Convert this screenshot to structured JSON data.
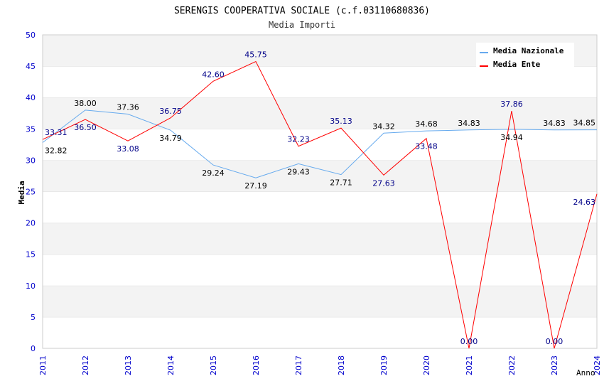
{
  "chart_data": {
    "type": "line",
    "title": "SERENGIS COOPERATIVA SOCIALE (c.f.03110680836)",
    "subtitle": "Media Importi",
    "xlabel": "Anno",
    "ylabel": "Media",
    "ylim": [
      0,
      50
    ],
    "yticks": [
      0,
      5,
      10,
      15,
      20,
      25,
      30,
      35,
      40,
      45,
      50
    ],
    "x": [
      "2011",
      "2012",
      "2013",
      "2014",
      "2015",
      "2016",
      "2017",
      "2018",
      "2019",
      "2020",
      "2021",
      "2022",
      "2023",
      "2024"
    ],
    "legend_position": "top-right",
    "series": [
      {
        "name": "Media Nazionale",
        "color": "#66aaee",
        "label_color": "#000000",
        "values": [
          32.82,
          38.0,
          37.36,
          34.79,
          29.24,
          27.19,
          29.43,
          27.71,
          34.32,
          34.68,
          34.83,
          34.94,
          34.83,
          34.85
        ]
      },
      {
        "name": "Media Ente",
        "color": "#ff0000",
        "label_color": "#000088",
        "values": [
          33.31,
          36.5,
          33.08,
          36.75,
          42.6,
          45.75,
          32.23,
          35.13,
          27.63,
          33.48,
          0.0,
          37.86,
          0.0,
          24.63
        ]
      }
    ]
  }
}
